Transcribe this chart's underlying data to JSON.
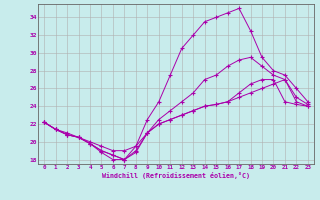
{
  "xlabel": "Windchill (Refroidissement éolien,°C)",
  "background_color": "#c8ecec",
  "grid_color": "#b0b0b0",
  "line_color": "#aa00aa",
  "spine_color": "#666666",
  "xlim": [
    -0.5,
    23.5
  ],
  "ylim": [
    17.5,
    35.5
  ],
  "yticks": [
    18,
    20,
    22,
    24,
    26,
    28,
    30,
    32,
    34
  ],
  "xticks": [
    0,
    1,
    2,
    3,
    4,
    5,
    6,
    7,
    8,
    9,
    10,
    11,
    12,
    13,
    14,
    15,
    16,
    17,
    18,
    19,
    20,
    21,
    22,
    23
  ],
  "lines": [
    [
      22.2,
      21.4,
      20.8,
      20.5,
      19.8,
      19.0,
      18.5,
      18.0,
      18.8,
      21.0,
      22.0,
      22.5,
      23.0,
      23.5,
      24.0,
      24.2,
      24.5,
      25.5,
      26.5,
      27.0,
      27.0,
      24.5,
      24.2,
      24.0
    ],
    [
      22.2,
      21.4,
      20.8,
      20.5,
      19.8,
      19.0,
      18.5,
      18.0,
      19.0,
      21.0,
      22.5,
      23.5,
      24.5,
      25.5,
      27.0,
      27.5,
      28.5,
      29.2,
      29.5,
      28.5,
      27.5,
      27.0,
      25.0,
      24.2
    ],
    [
      22.2,
      21.4,
      20.8,
      20.5,
      19.8,
      18.8,
      18.0,
      18.0,
      19.5,
      22.5,
      24.5,
      27.5,
      30.5,
      32.0,
      33.5,
      34.0,
      34.5,
      35.0,
      32.5,
      29.5,
      28.0,
      27.5,
      26.0,
      24.5
    ],
    [
      22.2,
      21.4,
      21.0,
      20.5,
      20.0,
      19.5,
      19.0,
      19.0,
      19.5,
      21.0,
      22.0,
      22.5,
      23.0,
      23.5,
      24.0,
      24.2,
      24.5,
      25.0,
      25.5,
      26.0,
      26.5,
      27.0,
      24.5,
      24.0
    ]
  ]
}
